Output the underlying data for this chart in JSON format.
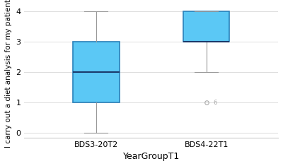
{
  "title": "",
  "xlabel": "YearGroupT1",
  "ylabel": "I carry out a diet analysis for my patients",
  "categories": [
    "BDS3-20T2",
    "BDS4-22T1"
  ],
  "box1": {
    "whislo": 0,
    "q1": 1,
    "med": 2,
    "q3": 3,
    "whishi": 4,
    "fliers": []
  },
  "box2": {
    "whislo": 2,
    "q1": 3,
    "med": 3,
    "q3": 4,
    "whishi": 4,
    "fliers": [
      1
    ]
  },
  "ylim": [
    -0.15,
    4.2
  ],
  "yticks": [
    0,
    1,
    2,
    3,
    4
  ],
  "box_color": "#5BC8F5",
  "box_edge_color": "#2980B9",
  "median_color": "#1A3A6B",
  "whisker_color": "#999999",
  "cap_color": "#999999",
  "flier_color": "#aaaaaa",
  "background_color": "#ffffff",
  "grid_color": "#dddddd",
  "xlabel_fontsize": 9,
  "ylabel_fontsize": 7.5,
  "tick_fontsize": 8,
  "box_width": 0.42
}
